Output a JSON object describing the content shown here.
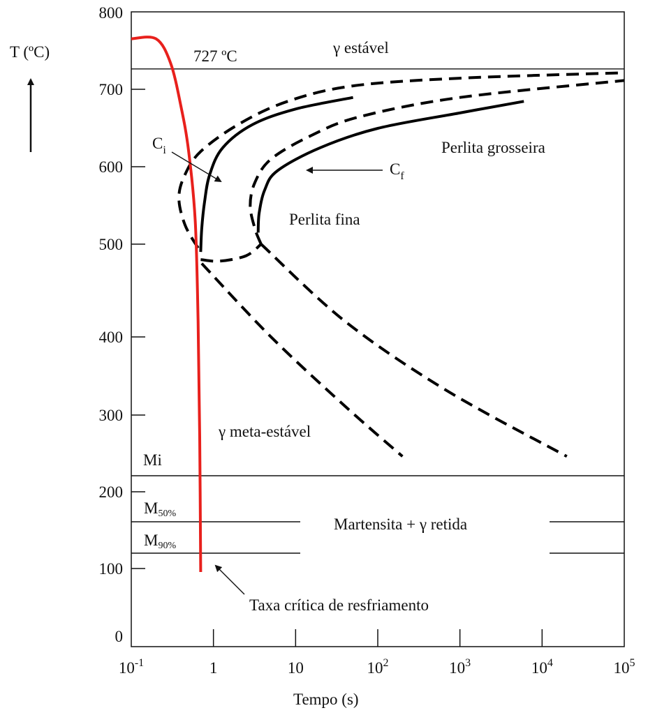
{
  "chart_data": {
    "type": "line",
    "xlabel": "Tempo (s)",
    "ylabel": "T (ºC)",
    "x_scale": "log",
    "xlim": [
      0.1,
      100000
    ],
    "x_ticks": [
      {
        "value": 0.1,
        "base": "10",
        "exp": "-1"
      },
      {
        "value": 1,
        "base": "1",
        "exp": ""
      },
      {
        "value": 10,
        "base": "10",
        "exp": ""
      },
      {
        "value": 100,
        "base": "10",
        "exp": "2"
      },
      {
        "value": 1000,
        "base": "10",
        "exp": "3"
      },
      {
        "value": 10000,
        "base": "10",
        "exp": "4"
      },
      {
        "value": 100000,
        "base": "10",
        "exp": "5"
      }
    ],
    "y_ticks": [
      "800",
      "700",
      "600",
      "500",
      "400",
      "300",
      "200",
      "100",
      "0"
    ],
    "horizontal_lines": [
      {
        "name": "727 ºC",
        "y": 727
      },
      {
        "name": "Mi",
        "y": 225
      }
    ],
    "martensite_lines": [
      {
        "name": "M50%",
        "base": "M",
        "sub": "50%"
      },
      {
        "name": "M90%",
        "base": "M",
        "sub": "90%"
      }
    ],
    "series": [
      {
        "name": "Ci",
        "style": "solid",
        "color": "#000000",
        "points": [
          [
            0.7,
            490
          ],
          [
            0.72,
            520
          ],
          [
            0.78,
            555
          ],
          [
            0.9,
            590
          ],
          [
            1.3,
            625
          ],
          [
            3,
            655
          ],
          [
            10,
            675
          ],
          [
            50,
            690
          ]
        ]
      },
      {
        "name": "Cf",
        "style": "solid",
        "color": "#000000",
        "points": [
          [
            3.5,
            515
          ],
          [
            3.6,
            540
          ],
          [
            4.2,
            570
          ],
          [
            6,
            595
          ],
          [
            20,
            625
          ],
          [
            100,
            650
          ],
          [
            1000,
            670
          ],
          [
            6000,
            685
          ]
        ]
      },
      {
        "style": "dashed",
        "color": "#000000",
        "points": [
          [
            0.65,
            495
          ],
          [
            0.45,
            525
          ],
          [
            0.38,
            560
          ],
          [
            0.45,
            590
          ],
          [
            0.7,
            620
          ],
          [
            2,
            655
          ],
          [
            8,
            685
          ],
          [
            50,
            705
          ],
          [
            1000,
            715
          ],
          [
            100000,
            722
          ]
        ]
      },
      {
        "style": "dashed",
        "color": "#000000",
        "points": [
          [
            0.7,
            480
          ],
          [
            1.2,
            478
          ],
          [
            2.5,
            485
          ],
          [
            3.8,
            500
          ]
        ]
      },
      {
        "style": "dashed",
        "color": "#000000",
        "points": [
          [
            3.8,
            500
          ],
          [
            3.2,
            520
          ],
          [
            2.8,
            550
          ],
          [
            3.2,
            580
          ],
          [
            5,
            610
          ],
          [
            15,
            640
          ],
          [
            60,
            665
          ],
          [
            1000,
            690
          ],
          [
            100000,
            712
          ]
        ]
      },
      {
        "style": "dashed",
        "color": "#000000",
        "points": [
          [
            0.72,
            475
          ],
          [
            5,
            380
          ],
          [
            40,
            290
          ],
          [
            200,
            225
          ]
        ]
      },
      {
        "style": "dashed",
        "color": "#000000",
        "points": [
          [
            3.8,
            500
          ],
          [
            40,
            400
          ],
          [
            700,
            310
          ],
          [
            20000,
            225
          ]
        ]
      },
      {
        "name": "Taxa crítica de resfriamento",
        "style": "solid",
        "color": "#e8201c",
        "points": [
          [
            0.1,
            766
          ],
          [
            0.2,
            766
          ],
          [
            0.3,
            735
          ],
          [
            0.4,
            680
          ],
          [
            0.5,
            620
          ],
          [
            0.6,
            530
          ],
          [
            0.65,
            400
          ],
          [
            0.68,
            250
          ],
          [
            0.7,
            90
          ]
        ]
      }
    ],
    "annotations": {
      "t727": "727 ºC",
      "gamma_stable": "γ estável",
      "ci_base": "C",
      "ci_sub": "i",
      "cf_base": "C",
      "cf_sub": "f",
      "perlita_grosseira": "Perlita grosseira",
      "perlita_fina": "Perlita fina",
      "gamma_meta": "γ meta-estável",
      "mi": "Mi",
      "martensita": "Martensita + γ retida",
      "taxa": "Taxa crítica de resfriamento"
    }
  }
}
